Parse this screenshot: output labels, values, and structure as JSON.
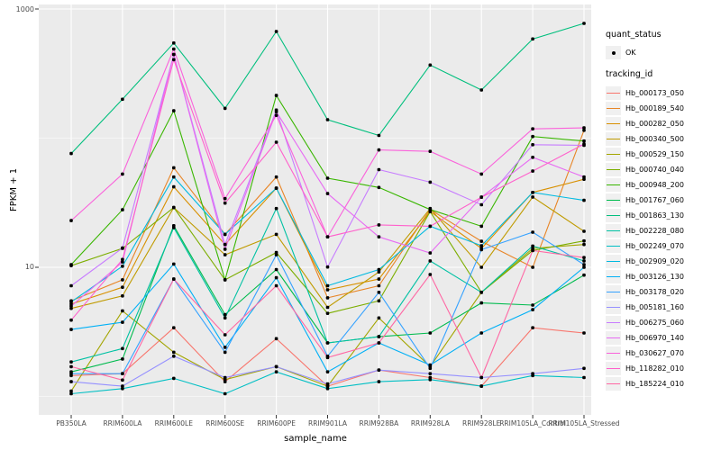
{
  "chart_data": {
    "type": "line",
    "title": "",
    "xlabel": "sample_name",
    "ylabel": "FPKM + 1",
    "y_scale": "log10",
    "ylim": [
      0.75,
      1100
    ],
    "grid": true,
    "panel_background": "#ebebeb",
    "gridline_color": "#ffffff",
    "point_color": "#000000",
    "y_ticks_labeled": [
      {
        "value": 1000,
        "label": "1000"
      },
      {
        "value": 10,
        "label": "10"
      }
    ],
    "y_minor_gridlines": [
      100,
      1
    ],
    "categories": [
      "PB350LA",
      "RRIM600LA",
      "RRIM600LE",
      "RRIM600SE",
      "RRIM600PE",
      "RRIM901LA",
      "RRIM928BA",
      "RRIM928LA",
      "RRIM928LE",
      "RRIM105LA_Control",
      "RRIM105LA_Stressed"
    ],
    "series": [
      {
        "tracking_id": "Hb_000173_050",
        "color": "#F8766D",
        "quant_status": "OK",
        "values": [
          1.45,
          1.5,
          3.4,
          1.3,
          2.8,
          1.2,
          1.6,
          1.4,
          1.2,
          3.4,
          3.1
        ]
      },
      {
        "tracking_id": "Hb_000189_540",
        "color": "#E88526",
        "quant_status": "OK",
        "values": [
          5.5,
          8,
          59,
          18,
          50,
          5.8,
          7.2,
          28,
          15.9,
          10,
          115
        ]
      },
      {
        "tracking_id": "Hb_000282_050",
        "color": "#D89000",
        "quant_status": "OK",
        "values": [
          5.2,
          7,
          42,
          15,
          41,
          6.7,
          8.1,
          27,
          14,
          38,
          48
        ]
      },
      {
        "tracking_id": "Hb_000340_500",
        "color": "#C09B00",
        "quant_status": "OK",
        "values": [
          4.8,
          6,
          29,
          12.5,
          18,
          4.9,
          9.2,
          28.5,
          10,
          35,
          19
        ]
      },
      {
        "tracking_id": "Hb_000529_150",
        "color": "#A3A500",
        "quant_status": "OK",
        "values": [
          1.1,
          4.6,
          2.2,
          1.35,
          1.7,
          1.2,
          4.05,
          1.7,
          6.4,
          14,
          15
        ]
      },
      {
        "tracking_id": "Hb_000740_040",
        "color": "#7CAE00",
        "quant_status": "OK",
        "values": [
          10.3,
          14,
          29,
          8,
          13,
          4.4,
          5.5,
          27,
          6.4,
          13.5,
          16
        ]
      },
      {
        "tracking_id": "Hb_000948_200",
        "color": "#39B600",
        "quant_status": "OK",
        "values": [
          10.5,
          27.9,
          163,
          8,
          214,
          49,
          41.5,
          28,
          20.8,
          103,
          95
        ]
      },
      {
        "tracking_id": "Hb_001767_060",
        "color": "#00BB4E",
        "quant_status": "OK",
        "values": [
          1.55,
          1.95,
          21,
          4.3,
          9.6,
          2.6,
          2.9,
          3.1,
          5.3,
          5.1,
          8.7
        ]
      },
      {
        "tracking_id": "Hb_001863_130",
        "color": "#00BF7D",
        "quant_status": "OK",
        "values": [
          76,
          200,
          545,
          170,
          670,
          139,
          105,
          368,
          236,
          586,
          774
        ]
      },
      {
        "tracking_id": "Hb_002228_080",
        "color": "#00C1A3",
        "quant_status": "OK",
        "values": [
          1.85,
          2.35,
          20.3,
          4.05,
          28.5,
          2.6,
          2.9,
          11.2,
          6.4,
          14.6,
          11.2
        ]
      },
      {
        "tracking_id": "Hb_002249_070",
        "color": "#00BFC4",
        "quant_status": "OK",
        "values": [
          1.05,
          1.15,
          1.38,
          1.05,
          1.55,
          1.15,
          1.3,
          1.35,
          1.2,
          1.45,
          1.4
        ]
      },
      {
        "tracking_id": "Hb_002909_020",
        "color": "#00BAE0",
        "quant_status": "OK",
        "values": [
          5.4,
          10.2,
          50,
          18,
          41,
          7.2,
          9.6,
          20.8,
          14.7,
          38,
          33
        ]
      },
      {
        "tracking_id": "Hb_003126_130",
        "color": "#00B0F6",
        "quant_status": "OK",
        "values": [
          3.3,
          3.75,
          10.6,
          2.4,
          8.3,
          1.55,
          2.6,
          1.75,
          3.1,
          4.7,
          10
        ]
      },
      {
        "tracking_id": "Hb_003178_020",
        "color": "#35A2FF",
        "quant_status": "OK",
        "values": [
          1.5,
          1.5,
          8.1,
          2.2,
          12.5,
          2.05,
          6.4,
          1.65,
          13.7,
          18.7,
          10.5
        ]
      },
      {
        "tracking_id": "Hb_005181_160",
        "color": "#9590FF",
        "quant_status": "OK",
        "values": [
          1.3,
          1.2,
          2.05,
          1.4,
          1.7,
          1.25,
          1.6,
          1.5,
          1.4,
          1.5,
          1.65
        ]
      },
      {
        "tracking_id": "Hb_006275_060",
        "color": "#C77CFF",
        "quant_status": "OK",
        "values": [
          7.2,
          14.1,
          445,
          15,
          165,
          10.05,
          57,
          45.6,
          30.5,
          89,
          88
        ]
      },
      {
        "tracking_id": "Hb_006970_140",
        "color": "#E76BF3",
        "quant_status": "OK",
        "values": [
          5.0,
          11,
          445,
          13.8,
          160,
          37.2,
          17.2,
          12.9,
          34.9,
          71,
          50
        ]
      },
      {
        "tracking_id": "Hb_030627_070",
        "color": "#FA62DB",
        "quant_status": "OK",
        "values": [
          23,
          52.7,
          490,
          34,
          150,
          17.2,
          81,
          79,
          52.7,
          118,
          120
        ]
      },
      {
        "tracking_id": "Hb_118282_010",
        "color": "#FF61CC",
        "quant_status": "OK",
        "values": [
          3.9,
          11.5,
          405,
          31.4,
          93,
          17.2,
          21.3,
          20.8,
          34.9,
          55.6,
          90
        ]
      },
      {
        "tracking_id": "Hb_185224_010",
        "color": "#FF67A4",
        "quant_status": "OK",
        "values": [
          1.7,
          1.34,
          8.1,
          3.0,
          7.2,
          2.0,
          2.6,
          8.8,
          1.4,
          13.5,
          11.9
        ]
      }
    ],
    "legend_position": "right"
  },
  "legend": {
    "quant_status": {
      "title": "quant_status",
      "items": [
        {
          "label": "OK",
          "symbol": "point"
        }
      ]
    },
    "tracking_id": {
      "title": "tracking_id"
    }
  }
}
